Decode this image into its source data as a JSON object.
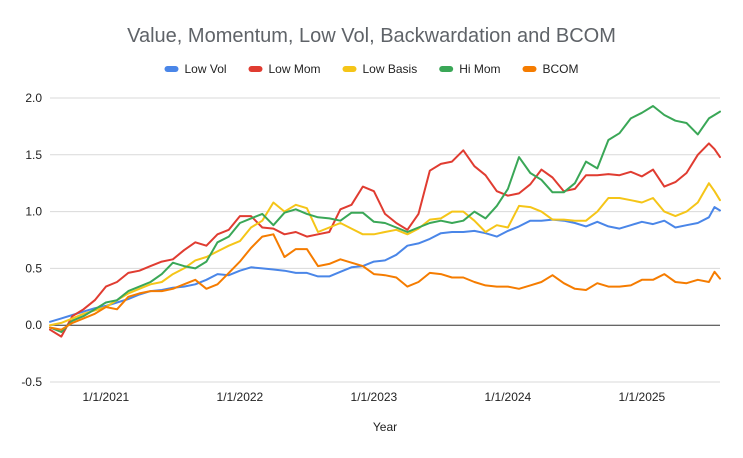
{
  "chart_data": {
    "type": "line",
    "title": "Value, Momentum, Low Vol, Backwardation and BCOM",
    "xlabel": "Year",
    "ylabel": "",
    "ylim": [
      -0.5,
      2.0
    ],
    "yticks": [
      "2.0",
      "1.5",
      "1.0",
      "0.5",
      "0.0",
      "-0.5"
    ],
    "ytick_values": [
      2.0,
      1.5,
      1.0,
      0.5,
      0.0,
      -0.5
    ],
    "xticks": [
      "1/1/2021",
      "1/1/2022",
      "1/1/2023",
      "1/1/2024",
      "1/1/2025"
    ],
    "xtick_values": [
      2021.0,
      2022.0,
      2023.0,
      2024.0,
      2025.0
    ],
    "xlim": [
      2020.583,
      2025.583
    ],
    "grid": "horizontal",
    "legend_position": "top",
    "series": [
      {
        "name": "Low Vol",
        "color": "#4a86e8",
        "x": [
          2020.583,
          2020.667,
          2020.75,
          2020.833,
          2020.917,
          2021.0,
          2021.083,
          2021.167,
          2021.25,
          2021.333,
          2021.417,
          2021.5,
          2021.583,
          2021.667,
          2021.75,
          2021.833,
          2021.917,
          2022.0,
          2022.083,
          2022.167,
          2022.25,
          2022.333,
          2022.417,
          2022.5,
          2022.583,
          2022.667,
          2022.75,
          2022.833,
          2022.917,
          2023.0,
          2023.083,
          2023.167,
          2023.25,
          2023.333,
          2023.417,
          2023.5,
          2023.583,
          2023.667,
          2023.75,
          2023.833,
          2023.917,
          2024.0,
          2024.083,
          2024.167,
          2024.25,
          2024.333,
          2024.417,
          2024.5,
          2024.583,
          2024.667,
          2024.75,
          2024.833,
          2024.917,
          2025.0,
          2025.083,
          2025.167,
          2025.25,
          2025.333,
          2025.417,
          2025.5,
          2025.542,
          2025.583
        ],
        "y": [
          0.03,
          0.06,
          0.09,
          0.12,
          0.15,
          0.17,
          0.2,
          0.23,
          0.27,
          0.3,
          0.31,
          0.33,
          0.34,
          0.36,
          0.4,
          0.45,
          0.44,
          0.48,
          0.51,
          0.5,
          0.49,
          0.48,
          0.46,
          0.46,
          0.43,
          0.43,
          0.47,
          0.51,
          0.52,
          0.56,
          0.57,
          0.62,
          0.7,
          0.72,
          0.76,
          0.81,
          0.82,
          0.82,
          0.83,
          0.81,
          0.78,
          0.83,
          0.87,
          0.92,
          0.92,
          0.93,
          0.92,
          0.9,
          0.87,
          0.91,
          0.87,
          0.85,
          0.88,
          0.91,
          0.89,
          0.92,
          0.86,
          0.88,
          0.9,
          0.95,
          1.04,
          1.01
        ]
      },
      {
        "name": "Low Mom",
        "color": "#e03c31",
        "x": [
          2020.583,
          2020.667,
          2020.75,
          2020.833,
          2020.917,
          2021.0,
          2021.083,
          2021.167,
          2021.25,
          2021.333,
          2021.417,
          2021.5,
          2021.583,
          2021.667,
          2021.75,
          2021.833,
          2021.917,
          2022.0,
          2022.083,
          2022.167,
          2022.25,
          2022.333,
          2022.417,
          2022.5,
          2022.583,
          2022.667,
          2022.75,
          2022.833,
          2022.917,
          2023.0,
          2023.083,
          2023.167,
          2023.25,
          2023.333,
          2023.417,
          2023.5,
          2023.583,
          2023.667,
          2023.75,
          2023.833,
          2023.917,
          2024.0,
          2024.083,
          2024.167,
          2024.25,
          2024.333,
          2024.417,
          2024.5,
          2024.583,
          2024.667,
          2024.75,
          2024.833,
          2024.917,
          2025.0,
          2025.083,
          2025.167,
          2025.25,
          2025.333,
          2025.417,
          2025.5,
          2025.542,
          2025.583
        ],
        "y": [
          -0.04,
          -0.1,
          0.08,
          0.14,
          0.22,
          0.34,
          0.38,
          0.46,
          0.48,
          0.52,
          0.56,
          0.58,
          0.66,
          0.73,
          0.7,
          0.8,
          0.84,
          0.96,
          0.96,
          0.86,
          0.85,
          0.8,
          0.82,
          0.78,
          0.8,
          0.82,
          1.02,
          1.06,
          1.22,
          1.18,
          0.98,
          0.9,
          0.84,
          0.98,
          1.36,
          1.42,
          1.44,
          1.54,
          1.4,
          1.32,
          1.18,
          1.14,
          1.16,
          1.24,
          1.37,
          1.3,
          1.18,
          1.2,
          1.32,
          1.32,
          1.33,
          1.32,
          1.35,
          1.31,
          1.37,
          1.22,
          1.26,
          1.34,
          1.5,
          1.6,
          1.55,
          1.48
        ]
      },
      {
        "name": "Low Basis",
        "color": "#f5c518",
        "x": [
          2020.583,
          2020.667,
          2020.75,
          2020.833,
          2020.917,
          2021.0,
          2021.083,
          2021.167,
          2021.25,
          2021.333,
          2021.417,
          2021.5,
          2021.583,
          2021.667,
          2021.75,
          2021.833,
          2021.917,
          2022.0,
          2022.083,
          2022.167,
          2022.25,
          2022.333,
          2022.417,
          2022.5,
          2022.583,
          2022.667,
          2022.75,
          2022.833,
          2022.917,
          2023.0,
          2023.083,
          2023.167,
          2023.25,
          2023.333,
          2023.417,
          2023.5,
          2023.583,
          2023.667,
          2023.75,
          2023.833,
          2023.917,
          2024.0,
          2024.083,
          2024.167,
          2024.25,
          2024.333,
          2024.417,
          2024.5,
          2024.583,
          2024.667,
          2024.75,
          2024.833,
          2024.917,
          2025.0,
          2025.083,
          2025.167,
          2025.25,
          2025.333,
          2025.417,
          2025.5,
          2025.542,
          2025.583
        ],
        "y": [
          0.0,
          0.02,
          0.06,
          0.1,
          0.13,
          0.16,
          0.22,
          0.28,
          0.32,
          0.36,
          0.38,
          0.45,
          0.5,
          0.57,
          0.6,
          0.65,
          0.7,
          0.74,
          0.86,
          0.92,
          1.08,
          1.0,
          1.06,
          1.03,
          0.82,
          0.86,
          0.9,
          0.85,
          0.8,
          0.8,
          0.82,
          0.84,
          0.8,
          0.85,
          0.93,
          0.94,
          1.0,
          1.0,
          0.92,
          0.82,
          0.88,
          0.86,
          1.05,
          1.04,
          1.0,
          0.93,
          0.93,
          0.92,
          0.92,
          1.0,
          1.12,
          1.12,
          1.1,
          1.08,
          1.12,
          1.0,
          0.96,
          1.0,
          1.08,
          1.25,
          1.18,
          1.1
        ]
      },
      {
        "name": "Hi Mom",
        "color": "#3aa757",
        "x": [
          2020.583,
          2020.667,
          2020.75,
          2020.833,
          2020.917,
          2021.0,
          2021.083,
          2021.167,
          2021.25,
          2021.333,
          2021.417,
          2021.5,
          2021.583,
          2021.667,
          2021.75,
          2021.833,
          2021.917,
          2022.0,
          2022.083,
          2022.167,
          2022.25,
          2022.333,
          2022.417,
          2022.5,
          2022.583,
          2022.667,
          2022.75,
          2022.833,
          2022.917,
          2023.0,
          2023.083,
          2023.167,
          2023.25,
          2023.333,
          2023.417,
          2023.5,
          2023.583,
          2023.667,
          2023.75,
          2023.833,
          2023.917,
          2024.0,
          2024.083,
          2024.167,
          2024.25,
          2024.333,
          2024.417,
          2024.5,
          2024.583,
          2024.667,
          2024.75,
          2024.833,
          2024.917,
          2025.0,
          2025.083,
          2025.167,
          2025.25,
          2025.333,
          2025.417,
          2025.5,
          2025.542,
          2025.583
        ],
        "y": [
          -0.02,
          -0.06,
          0.04,
          0.08,
          0.14,
          0.2,
          0.22,
          0.3,
          0.34,
          0.38,
          0.45,
          0.55,
          0.52,
          0.5,
          0.56,
          0.73,
          0.78,
          0.9,
          0.94,
          0.98,
          0.88,
          0.99,
          1.02,
          0.98,
          0.95,
          0.94,
          0.92,
          0.99,
          0.99,
          0.91,
          0.9,
          0.86,
          0.82,
          0.86,
          0.9,
          0.92,
          0.9,
          0.92,
          1.0,
          0.94,
          1.05,
          1.2,
          1.48,
          1.34,
          1.28,
          1.17,
          1.17,
          1.25,
          1.44,
          1.38,
          1.63,
          1.69,
          1.82,
          1.87,
          1.93,
          1.85,
          1.8,
          1.78,
          1.68,
          1.82,
          1.85,
          1.88
        ]
      },
      {
        "name": "BCOM",
        "color": "#f57c00",
        "x": [
          2020.583,
          2020.667,
          2020.75,
          2020.833,
          2020.917,
          2021.0,
          2021.083,
          2021.167,
          2021.25,
          2021.333,
          2021.417,
          2021.5,
          2021.583,
          2021.667,
          2021.75,
          2021.833,
          2021.917,
          2022.0,
          2022.083,
          2022.167,
          2022.25,
          2022.333,
          2022.417,
          2022.5,
          2022.583,
          2022.667,
          2022.75,
          2022.833,
          2022.917,
          2023.0,
          2023.083,
          2023.167,
          2023.25,
          2023.333,
          2023.417,
          2023.5,
          2023.583,
          2023.667,
          2023.75,
          2023.833,
          2023.917,
          2024.0,
          2024.083,
          2024.167,
          2024.25,
          2024.333,
          2024.417,
          2024.5,
          2024.583,
          2024.667,
          2024.75,
          2024.833,
          2024.917,
          2025.0,
          2025.083,
          2025.167,
          2025.25,
          2025.333,
          2025.417,
          2025.5,
          2025.542,
          2025.583
        ],
        "y": [
          -0.02,
          -0.04,
          0.02,
          0.06,
          0.1,
          0.16,
          0.14,
          0.25,
          0.28,
          0.3,
          0.3,
          0.32,
          0.36,
          0.4,
          0.32,
          0.36,
          0.46,
          0.56,
          0.68,
          0.78,
          0.8,
          0.6,
          0.67,
          0.67,
          0.52,
          0.54,
          0.58,
          0.55,
          0.52,
          0.45,
          0.44,
          0.42,
          0.34,
          0.38,
          0.46,
          0.45,
          0.42,
          0.42,
          0.38,
          0.35,
          0.34,
          0.34,
          0.32,
          0.35,
          0.38,
          0.44,
          0.37,
          0.32,
          0.31,
          0.37,
          0.34,
          0.34,
          0.35,
          0.4,
          0.4,
          0.45,
          0.38,
          0.37,
          0.4,
          0.38,
          0.47,
          0.41
        ]
      }
    ]
  }
}
